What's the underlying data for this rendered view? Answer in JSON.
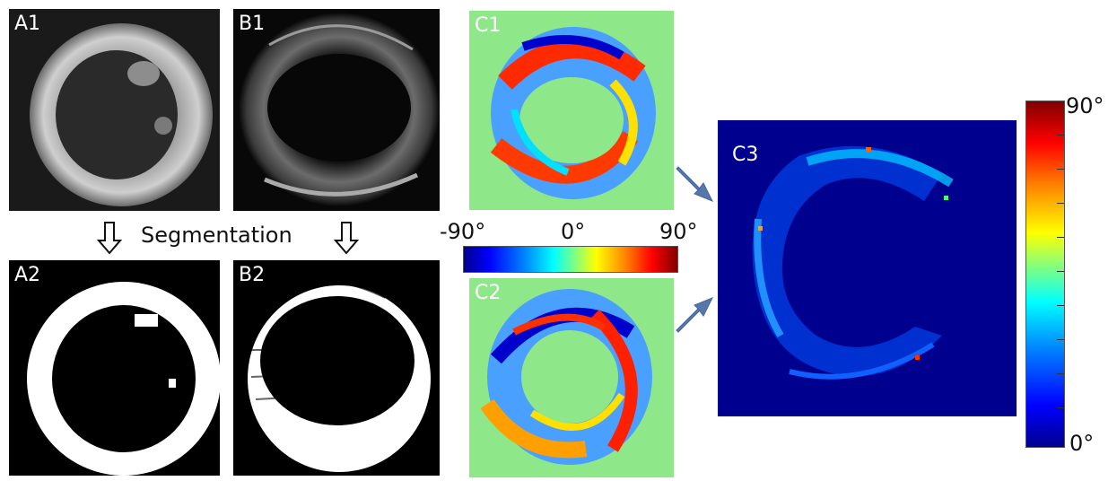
{
  "panels": {
    "a1": "A1",
    "b1": "B1",
    "a2": "A2",
    "b2": "B2",
    "c1": "C1",
    "c2": "C2",
    "c3": "C3"
  },
  "segmentation_label": "Segmentation",
  "horizontal_colorbar": {
    "min_label": "-90°",
    "mid_label": "0°",
    "max_label": "90°"
  },
  "vertical_colorbar": {
    "max_label": "90°",
    "min_label": "0°"
  },
  "colors": {
    "background_green": "#8ee88a",
    "background_navy": "#00008f",
    "arrow_blue": "#5577aa"
  }
}
